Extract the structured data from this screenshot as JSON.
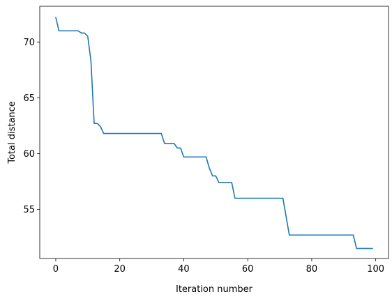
{
  "chart_data": {
    "type": "line",
    "title": "",
    "xlabel": "Iteration number",
    "ylabel": "Total distance",
    "xlim": [
      -5,
      104
    ],
    "ylim": [
      50.6,
      73.2
    ],
    "xticks": [
      0,
      20,
      40,
      60,
      80,
      100
    ],
    "yticks": [
      55,
      60,
      65,
      70
    ],
    "grid": false,
    "series": [
      {
        "color": "#1f77b4",
        "points": [
          [
            0,
            72.2
          ],
          [
            1,
            71.0
          ],
          [
            7,
            71.0
          ],
          [
            8,
            70.8
          ],
          [
            9,
            70.8
          ],
          [
            10,
            70.5
          ],
          [
            11,
            68.3
          ],
          [
            12,
            62.7
          ],
          [
            13,
            62.7
          ],
          [
            14,
            62.4
          ],
          [
            15,
            61.8
          ],
          [
            33,
            61.8
          ],
          [
            34,
            60.9
          ],
          [
            37,
            60.9
          ],
          [
            38,
            60.5
          ],
          [
            39,
            60.5
          ],
          [
            40,
            59.7
          ],
          [
            47,
            59.7
          ],
          [
            48,
            58.7
          ],
          [
            49,
            58.0
          ],
          [
            50,
            58.0
          ],
          [
            51,
            57.4
          ],
          [
            55,
            57.4
          ],
          [
            56,
            56.0
          ],
          [
            71,
            56.0
          ],
          [
            73,
            52.7
          ],
          [
            93,
            52.7
          ],
          [
            94,
            51.5
          ],
          [
            99,
            51.5
          ]
        ]
      }
    ]
  }
}
